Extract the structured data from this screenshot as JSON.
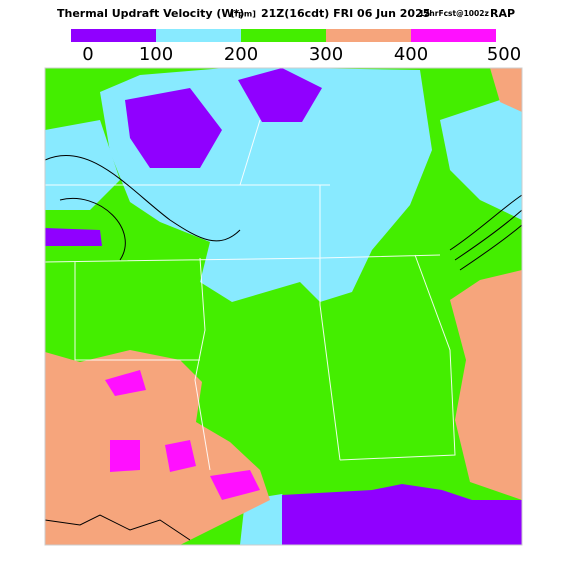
{
  "header": {
    "title": "Thermal Updraft Velocity (W*)",
    "units": "[fpm]",
    "valid": "21Z(16cdt) FRI 06 Jun 2025",
    "forecast": "12hrFcst@1002z",
    "model": "RAP"
  },
  "colorbar": {
    "ticks": [
      0,
      100,
      200,
      300,
      400,
      500
    ],
    "colors": [
      "#9000ff",
      "#88eaff",
      "#44ee00",
      "#f6a57c",
      "#ff10ff"
    ]
  }
}
